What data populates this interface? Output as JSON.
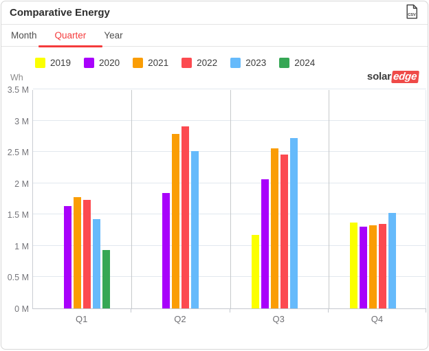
{
  "header": {
    "title": "Comparative Energy",
    "csv_button": "CSV"
  },
  "tabs": [
    {
      "label": "Month",
      "active": false
    },
    {
      "label": "Quarter",
      "active": true
    },
    {
      "label": "Year",
      "active": false
    }
  ],
  "logo": {
    "solar": "solar",
    "edge": "edge"
  },
  "colors": {
    "accent_red": "#f43b3c",
    "grid": "#e1e8ee",
    "divider": "#c6c9cb",
    "axis": "#c4c8ce"
  },
  "chart_data": {
    "type": "bar",
    "title": "Comparative Energy",
    "ylabel": "Wh",
    "xlabel": "",
    "unit_suffix": " M",
    "ylim": [
      0,
      3.5
    ],
    "ytick_step": 0.5,
    "ytick_labels": [
      "0 M",
      "0.5 M",
      "1 M",
      "1.5 M",
      "2 M",
      "2.5 M",
      "3 M",
      "3.5 M"
    ],
    "grid": true,
    "legend_position": "top",
    "categories": [
      "Q1",
      "Q2",
      "Q3",
      "Q4"
    ],
    "series": [
      {
        "name": "2019",
        "color": "#fbff00",
        "values": [
          null,
          null,
          1.17,
          1.37
        ]
      },
      {
        "name": "2020",
        "color": "#a802fb",
        "values": [
          1.64,
          1.84,
          2.06,
          1.31
        ]
      },
      {
        "name": "2021",
        "color": "#fa9d05",
        "values": [
          1.78,
          2.79,
          2.56,
          1.33
        ]
      },
      {
        "name": "2022",
        "color": "#fc4a50",
        "values": [
          1.73,
          2.91,
          2.46,
          1.35
        ]
      },
      {
        "name": "2023",
        "color": "#66bafb",
        "values": [
          1.43,
          2.51,
          2.72,
          1.52
        ]
      },
      {
        "name": "2024",
        "color": "#36a755",
        "values": [
          0.93,
          null,
          null,
          null
        ]
      }
    ]
  }
}
